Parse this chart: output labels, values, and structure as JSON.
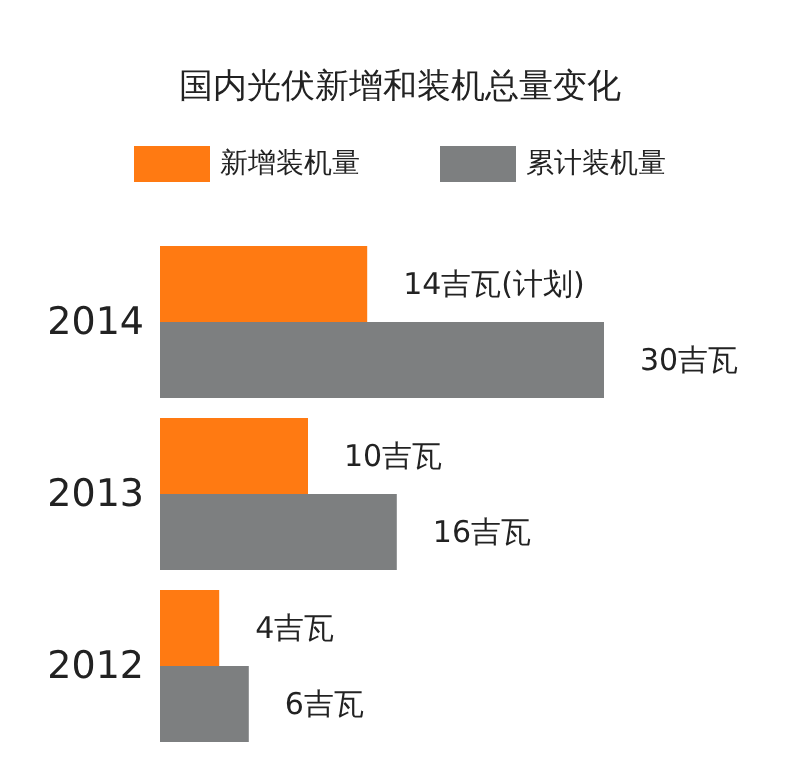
{
  "chart_data": {
    "type": "bar",
    "orientation": "horizontal",
    "title": "国内光伏新增和装机总量变化",
    "categories": [
      "2014",
      "2013",
      "2012"
    ],
    "series": [
      {
        "name": "新增装机量",
        "color": "#ff7a12",
        "values": [
          14,
          10,
          4
        ],
        "value_labels": [
          "14吉瓦(计划)",
          "10吉瓦",
          "4吉瓦"
        ]
      },
      {
        "name": "累计装机量",
        "color": "#7d7f80",
        "values": [
          30,
          16,
          6
        ],
        "value_labels": [
          "30吉瓦",
          "16吉瓦",
          "6吉瓦"
        ]
      }
    ],
    "legend": "top",
    "tick_labels": "y"
  }
}
